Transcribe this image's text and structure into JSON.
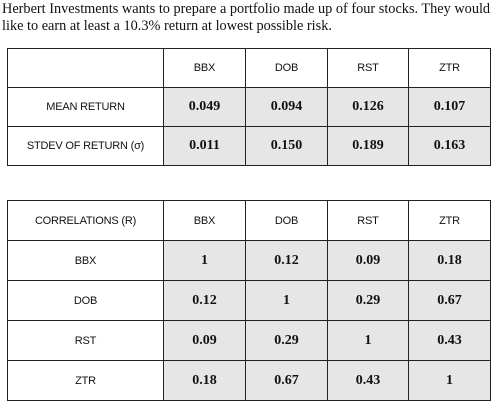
{
  "intro": "Herbert Investments wants to prepare a portfolio made up of four stocks. They would like to earn at least a 10.3% return at lowest possible risk.",
  "table1": {
    "columns": [
      "BBX",
      "DOB",
      "RST",
      "ZTR"
    ],
    "rows": [
      {
        "label": "MEAN RETURN",
        "values": [
          "0.049",
          "0.094",
          "0.126",
          "0.107"
        ]
      },
      {
        "label": "STDEV OF RETURN (σ)",
        "values": [
          "0.011",
          "0.150",
          "0.189",
          "0.163"
        ]
      }
    ]
  },
  "table2": {
    "corner": "CORRELATIONS (R)",
    "columns": [
      "BBX",
      "DOB",
      "RST",
      "ZTR"
    ],
    "rows": [
      {
        "label": "BBX",
        "values": [
          "1",
          "0.12",
          "0.09",
          "0.18"
        ]
      },
      {
        "label": "DOB",
        "values": [
          "0.12",
          "1",
          "0.29",
          "0.67"
        ]
      },
      {
        "label": "RST",
        "values": [
          "0.09",
          "0.29",
          "1",
          "0.43"
        ]
      },
      {
        "label": "ZTR",
        "values": [
          "0.18",
          "0.67",
          "0.43",
          "1"
        ]
      }
    ]
  }
}
